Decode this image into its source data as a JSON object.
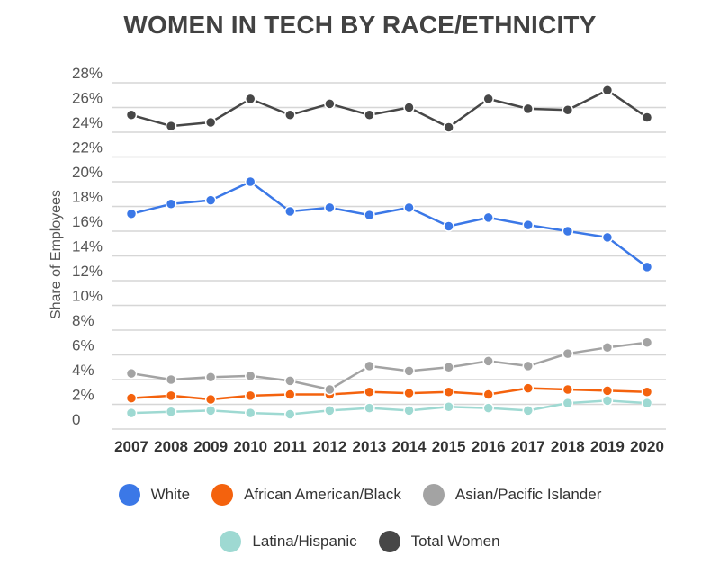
{
  "chart_data": {
    "type": "line",
    "title": "WOMEN IN TECH BY RACE/ETHNICITY",
    "ylabel": "Share of Employees",
    "xlabel": "",
    "ylim": [
      0,
      28
    ],
    "y_ticks": [
      "0",
      "2%",
      "4%",
      "6%",
      "8%",
      "10%",
      "12%",
      "14%",
      "16%",
      "18%",
      "20%",
      "22%",
      "24%",
      "26%",
      "28%"
    ],
    "x": [
      "2007",
      "2008",
      "2009",
      "2010",
      "2011",
      "2012",
      "2013",
      "2014",
      "2015",
      "2016",
      "2017",
      "2018",
      "2019",
      "2020"
    ],
    "grid": true,
    "legend_position": "bottom",
    "series": [
      {
        "name": "White",
        "color": "#3B78E7",
        "values": [
          17.4,
          18.2,
          18.5,
          20,
          17.6,
          17.9,
          17.3,
          17.9,
          16.4,
          17.1,
          16.5,
          16.0,
          15.5,
          13.1
        ]
      },
      {
        "name": "African American/Black",
        "color": "#F4620D",
        "values": [
          2.5,
          2.7,
          2.4,
          2.7,
          2.8,
          2.8,
          3.0,
          2.9,
          3.0,
          2.8,
          3.3,
          3.2,
          3.1,
          3.0
        ]
      },
      {
        "name": "Asian/Pacific Islander",
        "color": "#A3A3A3",
        "values": [
          4.5,
          4.0,
          4.2,
          4.3,
          3.9,
          3.2,
          5.1,
          4.7,
          5.0,
          5.5,
          5.1,
          6.1,
          6.6,
          7.0
        ]
      },
      {
        "name": "Latina/Hispanic",
        "color": "#9ED9D2",
        "values": [
          1.3,
          1.4,
          1.5,
          1.3,
          1.2,
          1.5,
          1.7,
          1.5,
          1.8,
          1.7,
          1.5,
          2.1,
          2.3,
          2.1
        ]
      },
      {
        "name": "Total Women",
        "color": "#474747",
        "values": [
          25.4,
          24.5,
          24.8,
          26.7,
          25.4,
          26.3,
          25.4,
          26.0,
          24.4,
          26.7,
          25.9,
          25.8,
          27.4,
          25.2
        ]
      }
    ]
  }
}
